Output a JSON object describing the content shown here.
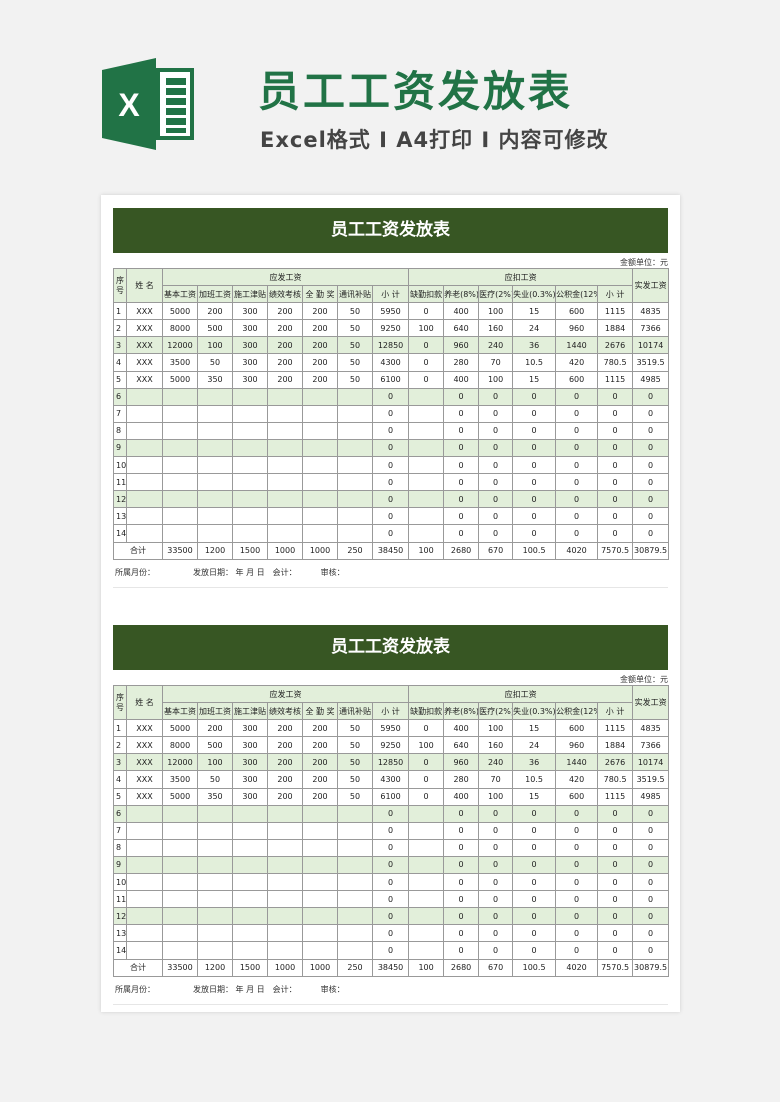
{
  "header": {
    "logo_letter": "X",
    "title": "员工工资发放表",
    "subtitle": "Excel格式 Ι A4打印 Ι 内容可修改"
  },
  "colors": {
    "brand": "#217346",
    "banner": "#375623",
    "stripe": "#e2efda"
  },
  "sheet": {
    "title": "员工工资发放表",
    "unit": "金额单位：元",
    "group_headers": {
      "no": "序号",
      "name": "姓  名",
      "payable": "应发工资",
      "deduct": "应扣工资",
      "net": "实发工资"
    },
    "sub_headers": [
      "基本工资",
      "加班工资",
      "施工津贴",
      "绩效考核",
      "全 勤 奖",
      "通讯补贴",
      "小  计",
      "缺勤扣款",
      "养老(8%)",
      "医疗(2%)",
      "失业(0.3%)",
      "公积金(12%)",
      "小  计"
    ],
    "rows": [
      [
        "1",
        "XXX",
        "5000",
        "200",
        "300",
        "200",
        "200",
        "50",
        "5950",
        "0",
        "400",
        "100",
        "15",
        "600",
        "1115",
        "4835"
      ],
      [
        "2",
        "XXX",
        "8000",
        "500",
        "300",
        "200",
        "200",
        "50",
        "9250",
        "100",
        "640",
        "160",
        "24",
        "960",
        "1884",
        "7366"
      ],
      [
        "3",
        "XXX",
        "12000",
        "100",
        "300",
        "200",
        "200",
        "50",
        "12850",
        "0",
        "960",
        "240",
        "36",
        "1440",
        "2676",
        "10174"
      ],
      [
        "4",
        "XXX",
        "3500",
        "50",
        "300",
        "200",
        "200",
        "50",
        "4300",
        "0",
        "280",
        "70",
        "10.5",
        "420",
        "780.5",
        "3519.5"
      ],
      [
        "5",
        "XXX",
        "5000",
        "350",
        "300",
        "200",
        "200",
        "50",
        "6100",
        "0",
        "400",
        "100",
        "15",
        "600",
        "1115",
        "4985"
      ],
      [
        "6",
        "",
        "",
        "",
        "",
        "",
        "",
        "",
        "0",
        "",
        "0",
        "0",
        "0",
        "0",
        "0",
        "0"
      ],
      [
        "7",
        "",
        "",
        "",
        "",
        "",
        "",
        "",
        "0",
        "",
        "0",
        "0",
        "0",
        "0",
        "0",
        "0"
      ],
      [
        "8",
        "",
        "",
        "",
        "",
        "",
        "",
        "",
        "0",
        "",
        "0",
        "0",
        "0",
        "0",
        "0",
        "0"
      ],
      [
        "9",
        "",
        "",
        "",
        "",
        "",
        "",
        "",
        "0",
        "",
        "0",
        "0",
        "0",
        "0",
        "0",
        "0"
      ],
      [
        "10",
        "",
        "",
        "",
        "",
        "",
        "",
        "",
        "0",
        "",
        "0",
        "0",
        "0",
        "0",
        "0",
        "0"
      ],
      [
        "11",
        "",
        "",
        "",
        "",
        "",
        "",
        "",
        "0",
        "",
        "0",
        "0",
        "0",
        "0",
        "0",
        "0"
      ],
      [
        "12",
        "",
        "",
        "",
        "",
        "",
        "",
        "",
        "0",
        "",
        "0",
        "0",
        "0",
        "0",
        "0",
        "0"
      ],
      [
        "13",
        "",
        "",
        "",
        "",
        "",
        "",
        "",
        "0",
        "",
        "0",
        "0",
        "0",
        "0",
        "0",
        "0"
      ],
      [
        "14",
        "",
        "",
        "",
        "",
        "",
        "",
        "",
        "0",
        "",
        "0",
        "0",
        "0",
        "0",
        "0",
        "0"
      ]
    ],
    "total": [
      "合计",
      "33500",
      "1200",
      "1500",
      "1000",
      "1000",
      "250",
      "38450",
      "100",
      "2680",
      "670",
      "100.5",
      "4020",
      "7570.5",
      "30879.5"
    ],
    "footer": [
      "所属月份：",
      "发放日期：  年  月  日",
      "会计：",
      "审核："
    ]
  }
}
